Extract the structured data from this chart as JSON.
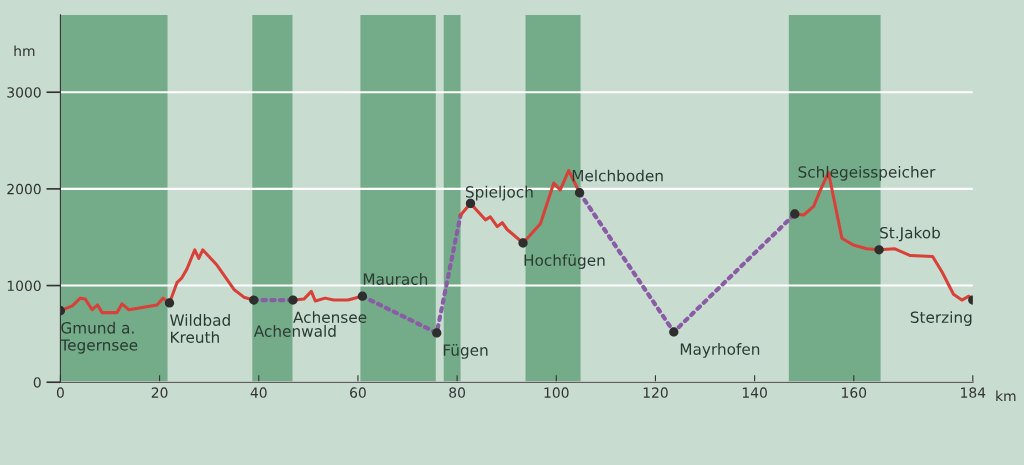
{
  "chart_data": {
    "type": "line",
    "xlabel": "km",
    "ylabel": "hm",
    "xlim": [
      0,
      184
    ],
    "ylim": [
      0,
      3800
    ],
    "xticks": [
      0,
      20,
      40,
      60,
      80,
      100,
      120,
      140,
      160,
      184
    ],
    "yticks": [
      0,
      1000,
      2000,
      3000
    ],
    "grid": "y",
    "bands": [
      {
        "axis": "x",
        "from": 0,
        "to": 21.6,
        "color": "#74ab88"
      },
      {
        "axis": "x",
        "from": 38.7,
        "to": 46.8,
        "color": "#74ab88"
      },
      {
        "axis": "x",
        "from": 60.5,
        "to": 75.7,
        "color": "#74ab88"
      },
      {
        "axis": "x",
        "from": 77.3,
        "to": 80.7,
        "color": "#74ab88"
      },
      {
        "axis": "x",
        "from": 93.8,
        "to": 104.9,
        "color": "#74ab88"
      },
      {
        "axis": "x",
        "from": 146.9,
        "to": 165.4,
        "color": "#74ab88"
      }
    ],
    "series": [
      {
        "color": "#d8403a",
        "line_style": "solid",
        "marker": "none",
        "x": [
          0,
          2.4,
          4.0,
          5.0,
          6.4,
          7.5,
          8.4,
          11.4,
          12.4,
          13.8,
          19.5,
          20.7,
          22.0,
          23.5,
          24.5,
          25.5,
          27.1,
          27.9,
          28.7,
          31.6,
          35.0,
          37.0,
          39.0
        ],
        "values": [
          740,
          790,
          870,
          860,
          750,
          800,
          720,
          720,
          810,
          750,
          800,
          870,
          820,
          1030,
          1080,
          1170,
          1370,
          1280,
          1370,
          1210,
          960,
          880,
          850
        ]
      },
      {
        "color": "#8a5ca6",
        "line_style": "dotted",
        "marker": "none",
        "x": [
          39.0,
          46.9
        ],
        "values": [
          850,
          850
        ]
      },
      {
        "color": "#d8403a",
        "line_style": "solid",
        "marker": "none",
        "x": [
          46.9,
          49.1,
          50.6,
          51.4,
          53.4,
          55.1,
          58.0,
          60.9
        ],
        "values": [
          850,
          860,
          940,
          840,
          870,
          850,
          850,
          890
        ]
      },
      {
        "color": "#8a5ca6",
        "line_style": "dotted",
        "marker": "none",
        "x": [
          60.9,
          75.9,
          80.7
        ],
        "values": [
          890,
          510,
          1730
        ]
      },
      {
        "color": "#d8403a",
        "line_style": "solid",
        "marker": "none",
        "x": [
          80.7,
          82.7,
          85.7,
          86.7,
          88.1,
          89.1,
          90.1,
          93.3,
          96.8,
          99.5,
          100.8,
          102.5,
          104.7
        ],
        "values": [
          1730,
          1850,
          1680,
          1710,
          1610,
          1650,
          1580,
          1440,
          1640,
          2060,
          1990,
          2190,
          1960
        ]
      },
      {
        "color": "#8a5ca6",
        "line_style": "dotted",
        "marker": "none",
        "x": [
          104.7,
          123.7,
          148.1
        ],
        "values": [
          1960,
          520,
          1740
        ]
      },
      {
        "color": "#d8403a",
        "line_style": "solid",
        "marker": "none",
        "x": [
          148.1,
          149.9,
          151.9,
          153.2,
          154.9,
          157.6,
          159.9,
          162.6,
          165.1,
          168.3,
          171.4,
          175.9,
          177.8,
          180.1,
          181.8,
          183.2,
          184
        ],
        "values": [
          1740,
          1730,
          1820,
          1980,
          2170,
          1490,
          1420,
          1380,
          1370,
          1380,
          1310,
          1300,
          1140,
          910,
          850,
          890,
          850
        ]
      },
      {
        "type": "scatter",
        "color": "#2e2e2e",
        "marker": "circle",
        "x": [
          0,
          22.0,
          39.0,
          46.9,
          60.9,
          75.9,
          82.7,
          93.3,
          104.7,
          123.7,
          148.1,
          165.1,
          184
        ],
        "values": [
          740,
          820,
          850,
          850,
          890,
          510,
          1850,
          1440,
          1960,
          520,
          1740,
          1370,
          850
        ]
      }
    ],
    "annotations": [
      {
        "text": "Gmund a.\nTegernsee",
        "x": 0,
        "y": 740
      },
      {
        "text": "Wildbad\nKreuth",
        "x": 22.0,
        "y": 820
      },
      {
        "text": "Achenwald",
        "x": 39.0,
        "y": 850
      },
      {
        "text": "Achensee",
        "x": 46.9,
        "y": 850
      },
      {
        "text": "Maurach",
        "x": 60.9,
        "y": 890
      },
      {
        "text": "Fügen",
        "x": 75.9,
        "y": 510
      },
      {
        "text": "Spieljoch",
        "x": 82.7,
        "y": 1850
      },
      {
        "text": "Hochfügen",
        "x": 93.3,
        "y": 1440
      },
      {
        "text": "Melchboden",
        "x": 104.7,
        "y": 1960
      },
      {
        "text": "Mayrhofen",
        "x": 123.7,
        "y": 520
      },
      {
        "text": "Schlegeisspeicher",
        "x": 148.1,
        "y": 1740
      },
      {
        "text": "St.Jakob",
        "x": 165.1,
        "y": 1370
      },
      {
        "text": "Sterzing",
        "x": 184,
        "y": 850
      }
    ]
  }
}
